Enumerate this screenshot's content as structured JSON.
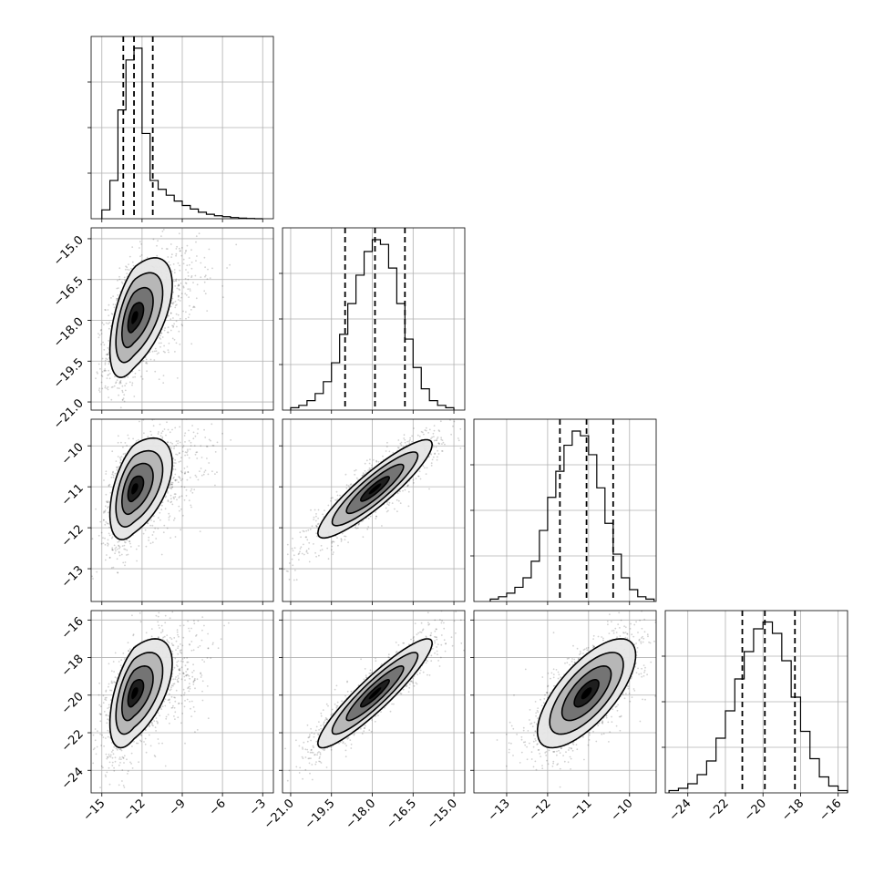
{
  "chart_data": {
    "type": "corner",
    "parameters": [
      {
        "range": [
          -15.8,
          -2.2
        ],
        "ticks": [
          -15,
          -12,
          -9,
          -6,
          -3
        ],
        "tick_labels": [
          "−15",
          "−12",
          "−9",
          "−6",
          "−3"
        ]
      },
      {
        "range": [
          -21.3,
          -14.6
        ],
        "ticks": [
          -21.0,
          -19.5,
          -18.0,
          -16.5,
          -15.0
        ],
        "tick_labels": [
          "−21.0",
          "−19.5",
          "−18.0",
          "−16.5",
          "−15.0"
        ]
      },
      {
        "range": [
          -13.8,
          -9.35
        ],
        "ticks": [
          -13,
          -12,
          -11,
          -10
        ],
        "tick_labels": [
          "−13",
          "−12",
          "−11",
          "−10"
        ]
      },
      {
        "range": [
          -25.2,
          -15.5
        ],
        "ticks": [
          -24,
          -22,
          -20,
          -18,
          -16
        ],
        "tick_labels": [
          "−24",
          "−22",
          "−20",
          "−18",
          "−16"
        ]
      }
    ],
    "diagonal_histograms": [
      {
        "param": 0,
        "bin_edges": [
          -15.0,
          -14.4,
          -13.8,
          -13.2,
          -12.6,
          -12.0,
          -11.4,
          -10.8,
          -10.2,
          -9.6,
          -9.0,
          -8.4,
          -7.8,
          -7.2,
          -6.6,
          -6.0,
          -5.4,
          -4.8,
          -4.2,
          -3.6,
          -3.0
        ],
        "counts": [
          0.03,
          0.13,
          0.37,
          0.54,
          0.58,
          0.29,
          0.13,
          0.1,
          0.08,
          0.06,
          0.045,
          0.033,
          0.022,
          0.015,
          0.01,
          0.007,
          0.004,
          0.002,
          0.001,
          0.0
        ],
        "ymax": 0.62,
        "quantiles": [
          -13.4,
          -12.6,
          -11.2
        ]
      },
      {
        "param": 1,
        "bin_edges": [
          -21.0,
          -20.7,
          -20.4,
          -20.1,
          -19.8,
          -19.5,
          -19.2,
          -18.9,
          -18.6,
          -18.3,
          -18.0,
          -17.7,
          -17.4,
          -17.1,
          -16.8,
          -16.5,
          -16.2,
          -15.9,
          -15.6,
          -15.3,
          -15.0
        ],
        "counts": [
          0.01,
          0.02,
          0.04,
          0.07,
          0.12,
          0.2,
          0.32,
          0.45,
          0.57,
          0.67,
          0.72,
          0.7,
          0.6,
          0.45,
          0.3,
          0.18,
          0.09,
          0.04,
          0.02,
          0.01
        ],
        "ymax": 0.77,
        "quantiles": [
          -19.0,
          -17.9,
          -16.8
        ]
      },
      {
        "param": 2,
        "bin_edges": [
          -13.4,
          -13.2,
          -13.0,
          -12.8,
          -12.6,
          -12.4,
          -12.2,
          -12.0,
          -11.8,
          -11.6,
          -11.4,
          -11.2,
          -11.0,
          -10.8,
          -10.6,
          -10.4,
          -10.2,
          -10.0,
          -9.8,
          -9.6,
          -9.4
        ],
        "counts": [
          0.01,
          0.02,
          0.035,
          0.06,
          0.1,
          0.17,
          0.3,
          0.44,
          0.55,
          0.66,
          0.72,
          0.7,
          0.62,
          0.48,
          0.33,
          0.2,
          0.1,
          0.05,
          0.02,
          0.01
        ],
        "ymax": 0.77,
        "quantiles": [
          -11.7,
          -11.05,
          -10.4
        ]
      },
      {
        "param": 3,
        "bin_edges": [
          -25.0,
          -24.5,
          -24.0,
          -23.5,
          -23.0,
          -22.5,
          -22.0,
          -21.5,
          -21.0,
          -20.5,
          -20.0,
          -19.5,
          -19.0,
          -18.5,
          -18.0,
          -17.5,
          -17.0,
          -16.5,
          -16.0,
          -15.5
        ],
        "counts": [
          0.01,
          0.02,
          0.04,
          0.08,
          0.14,
          0.24,
          0.36,
          0.5,
          0.62,
          0.72,
          0.75,
          0.7,
          0.58,
          0.42,
          0.27,
          0.15,
          0.07,
          0.03,
          0.01
        ],
        "ymax": 0.8,
        "quantiles": [
          -21.1,
          -19.9,
          -18.3
        ]
      }
    ],
    "pair_plots": [
      {
        "x_param": 0,
        "y_param": 1,
        "center": [
          -12.6,
          -17.9
        ],
        "spread": [
          0.9,
          1.1
        ],
        "corr": 0.55,
        "tail": 2.3
      },
      {
        "x_param": 0,
        "y_param": 2,
        "center": [
          -12.6,
          -11.05
        ],
        "spread": [
          0.9,
          0.62
        ],
        "corr": 0.5,
        "tail": 2.3
      },
      {
        "x_param": 1,
        "y_param": 2,
        "center": [
          -17.9,
          -11.05
        ],
        "spread": [
          1.05,
          0.6
        ],
        "corr": 0.9,
        "tail": 0
      },
      {
        "x_param": 0,
        "y_param": 3,
        "center": [
          -12.6,
          -19.9
        ],
        "spread": [
          0.9,
          1.45
        ],
        "corr": 0.55,
        "tail": 2.3
      },
      {
        "x_param": 1,
        "y_param": 3,
        "center": [
          -17.9,
          -19.9
        ],
        "spread": [
          1.05,
          1.45
        ],
        "corr": 0.92,
        "tail": 0
      },
      {
        "x_param": 2,
        "y_param": 3,
        "center": [
          -11.05,
          -19.9
        ],
        "spread": [
          0.6,
          1.45
        ],
        "corr": 0.7,
        "tail": 0
      }
    ],
    "contour_sigma_levels": [
      0.5,
      1.0,
      1.5,
      2.0
    ],
    "grid": true
  }
}
